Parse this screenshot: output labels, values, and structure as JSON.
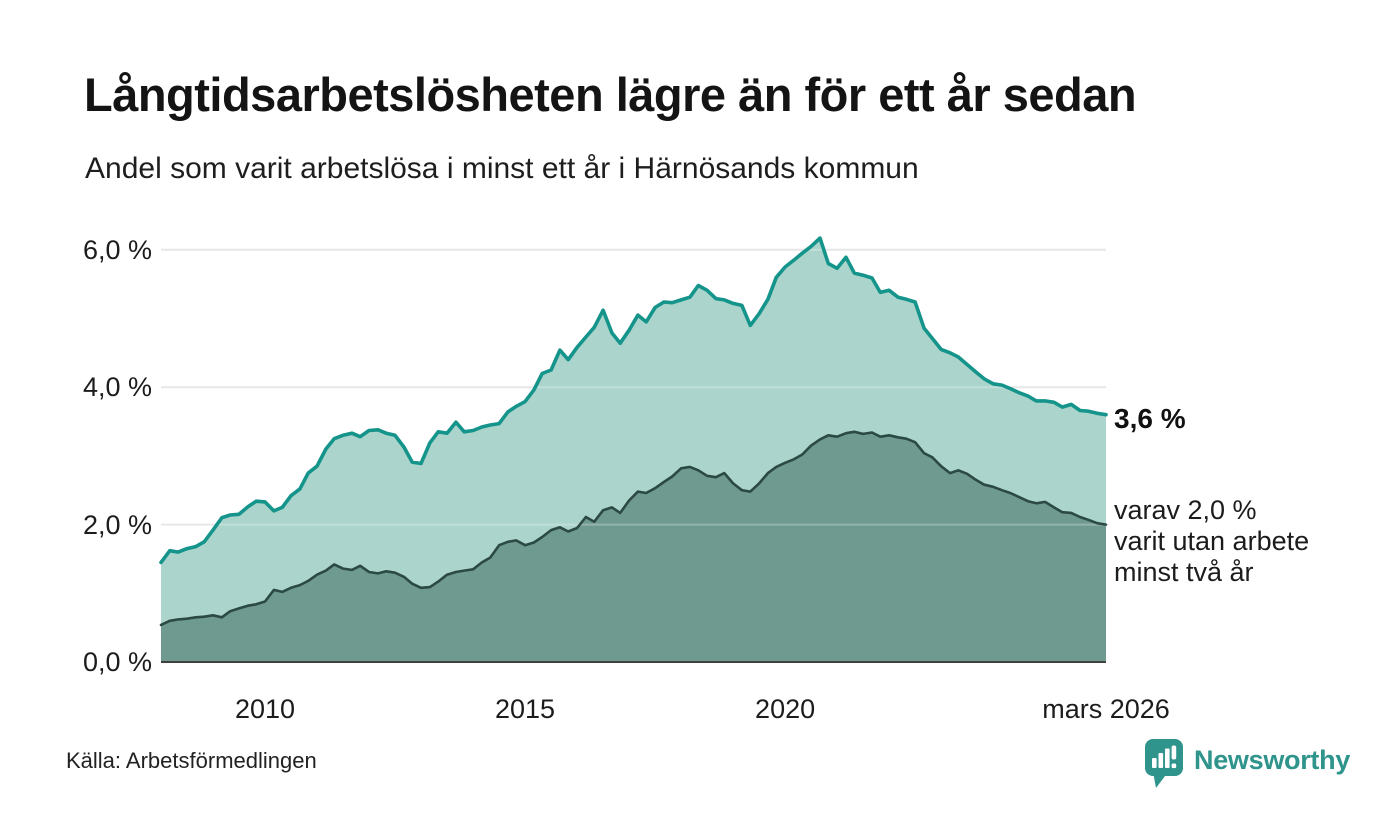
{
  "header": {
    "title": "Långtidsarbetslösheten lägre än för ett år sedan",
    "subtitle": "Andel som varit arbetslösa i minst ett år i Härnösands kommun"
  },
  "annotations": {
    "latest_value_label": "3,6 %",
    "secondary_note": "varav 2,0 %\nvarit utan arbete\nminst två år"
  },
  "footer": {
    "source": "Källa: Arbetsförmedlingen",
    "brand_name": "Newsworthy",
    "brand_color": "#2f948b",
    "logo_icon": "bar-chart-speech-bubble-icon"
  },
  "chart_data": {
    "type": "area",
    "title": "Långtidsarbetslösheten lägre än för ett år sedan",
    "subtitle": "Andel som varit arbetslösa i minst ett år i Härnösands kommun",
    "unit": "%",
    "grid": true,
    "legend_position": "none",
    "xlim": [
      2008,
      2026.17
    ],
    "ylim": [
      0,
      6.55
    ],
    "colors": {
      "gridline": "#e0e0e0",
      "axis_line": "#404040"
    },
    "y_ticks": [
      {
        "label": "6,0 %",
        "v": 6
      },
      {
        "label": "4,0 %",
        "v": 4
      },
      {
        "label": "2,0 %",
        "v": 2
      },
      {
        "label": "0,0 %",
        "v": 0
      }
    ],
    "x_ticks": [
      {
        "label": "2010",
        "x": 2010
      },
      {
        "label": "2015",
        "x": 2015
      },
      {
        "label": "2020",
        "x": 2020
      },
      {
        "label": "mars 2026",
        "x": 2026.17
      }
    ],
    "x": [
      2008,
      2008.17,
      2008.33,
      2008.5,
      2008.67,
      2008.83,
      2009,
      2009.17,
      2009.33,
      2009.5,
      2009.67,
      2009.83,
      2010,
      2010.17,
      2010.33,
      2010.5,
      2010.67,
      2010.83,
      2011,
      2011.17,
      2011.33,
      2011.5,
      2011.67,
      2011.83,
      2012,
      2012.17,
      2012.33,
      2012.5,
      2012.67,
      2012.83,
      2013,
      2013.17,
      2013.33,
      2013.5,
      2013.67,
      2013.83,
      2014,
      2014.17,
      2014.33,
      2014.5,
      2014.67,
      2014.83,
      2015,
      2015.17,
      2015.33,
      2015.5,
      2015.67,
      2015.83,
      2016,
      2016.17,
      2016.33,
      2016.5,
      2016.67,
      2016.83,
      2017,
      2017.17,
      2017.33,
      2017.5,
      2017.67,
      2017.83,
      2018,
      2018.17,
      2018.33,
      2018.5,
      2018.67,
      2018.83,
      2019,
      2019.17,
      2019.33,
      2019.5,
      2019.67,
      2019.83,
      2020,
      2020.17,
      2020.33,
      2020.5,
      2020.67,
      2020.83,
      2021,
      2021.17,
      2021.33,
      2021.5,
      2021.67,
      2021.83,
      2022,
      2022.17,
      2022.33,
      2022.5,
      2022.67,
      2022.83,
      2023,
      2023.17,
      2023.33,
      2023.5,
      2023.67,
      2023.83,
      2024,
      2024.17,
      2024.33,
      2024.5,
      2024.67,
      2024.83,
      2025,
      2025.17,
      2025.33,
      2025.5,
      2025.67,
      2025.83,
      2026,
      2026.17
    ],
    "series": [
      {
        "name": "Andel arbetslösa minst ett år",
        "line_color": "#14948a",
        "fill_color": "#abd5cc",
        "end_value": "3,6 %",
        "values": [
          1.45,
          1.62,
          1.6,
          1.65,
          1.68,
          1.75,
          1.92,
          2.1,
          2.14,
          2.15,
          2.26,
          2.34,
          2.33,
          2.2,
          2.25,
          2.42,
          2.52,
          2.75,
          2.85,
          3.1,
          3.25,
          3.3,
          3.33,
          3.28,
          3.37,
          3.38,
          3.33,
          3.3,
          3.13,
          2.91,
          2.89,
          3.19,
          3.35,
          3.33,
          3.49,
          3.35,
          3.37,
          3.42,
          3.45,
          3.47,
          3.64,
          3.72,
          3.79,
          3.96,
          4.2,
          4.25,
          4.54,
          4.4,
          4.58,
          4.73,
          4.87,
          5.12,
          4.79,
          4.64,
          4.83,
          5.05,
          4.95,
          5.16,
          5.24,
          5.23,
          5.27,
          5.31,
          5.48,
          5.41,
          5.29,
          5.27,
          5.22,
          5.19,
          4.9,
          5.07,
          5.28,
          5.6,
          5.75,
          5.85,
          5.95,
          6.05,
          6.17,
          5.8,
          5.73,
          5.89,
          5.66,
          5.63,
          5.59,
          5.38,
          5.41,
          5.31,
          5.28,
          5.24,
          4.86,
          4.71,
          4.55,
          4.5,
          4.44,
          4.33,
          4.22,
          4.12,
          4.05,
          4.03,
          3.98,
          3.92,
          3.87,
          3.8,
          3.8,
          3.78,
          3.71,
          3.75,
          3.66,
          3.65,
          3.62,
          3.6
        ]
      },
      {
        "name": "Andel arbetslösa minst två år",
        "line_color": "#2c4a44",
        "fill_color": "#6f9a90",
        "end_value": "2,0 %",
        "values": [
          0.54,
          0.6,
          0.62,
          0.63,
          0.65,
          0.66,
          0.68,
          0.65,
          0.74,
          0.78,
          0.82,
          0.84,
          0.88,
          1.05,
          1.02,
          1.08,
          1.12,
          1.18,
          1.27,
          1.33,
          1.42,
          1.36,
          1.34,
          1.4,
          1.31,
          1.29,
          1.32,
          1.3,
          1.24,
          1.14,
          1.08,
          1.09,
          1.17,
          1.27,
          1.31,
          1.33,
          1.35,
          1.45,
          1.52,
          1.7,
          1.75,
          1.77,
          1.7,
          1.74,
          1.82,
          1.92,
          1.96,
          1.9,
          1.95,
          2.11,
          2.04,
          2.21,
          2.25,
          2.17,
          2.35,
          2.48,
          2.46,
          2.53,
          2.62,
          2.7,
          2.82,
          2.84,
          2.79,
          2.71,
          2.69,
          2.75,
          2.6,
          2.5,
          2.48,
          2.6,
          2.75,
          2.84,
          2.9,
          2.95,
          3.02,
          3.15,
          3.24,
          3.3,
          3.28,
          3.33,
          3.35,
          3.32,
          3.34,
          3.28,
          3.3,
          3.27,
          3.25,
          3.2,
          3.04,
          2.98,
          2.85,
          2.75,
          2.79,
          2.74,
          2.65,
          2.58,
          2.55,
          2.5,
          2.46,
          2.4,
          2.34,
          2.31,
          2.33,
          2.25,
          2.18,
          2.17,
          2.11,
          2.07,
          2.02,
          2.0
        ]
      }
    ]
  }
}
